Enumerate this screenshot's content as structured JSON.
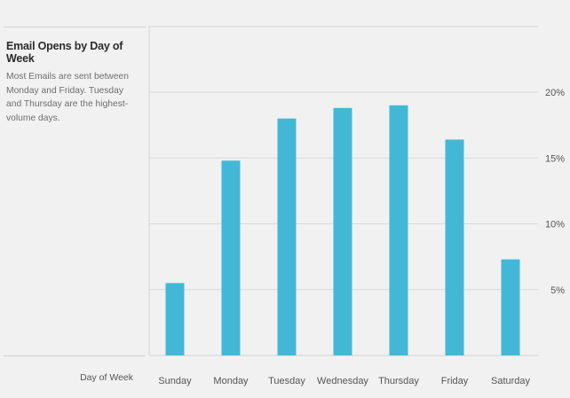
{
  "title": "Email Opens by Day of Week",
  "description": "Most Emails are sent between Monday and Friday. Tuesday and Thursday are the highest-volume days.",
  "chart_data": {
    "type": "bar",
    "title": "Email Opens by Day of Week",
    "xlabel": "Day of Week",
    "ylabel": "",
    "categories": [
      "Sunday",
      "Monday",
      "Tuesday",
      "Wednesday",
      "Thursday",
      "Friday",
      "Saturday"
    ],
    "values": [
      5.5,
      14.8,
      18.0,
      18.8,
      19.0,
      16.4,
      7.3
    ],
    "ylim": [
      0,
      20
    ],
    "yticks": [
      5,
      10,
      15,
      20
    ],
    "ytick_labels": [
      "5%",
      "10%",
      "15%",
      "20%"
    ],
    "y_axis_position": "right",
    "grid": true,
    "bar_color": "#43b8d6"
  }
}
